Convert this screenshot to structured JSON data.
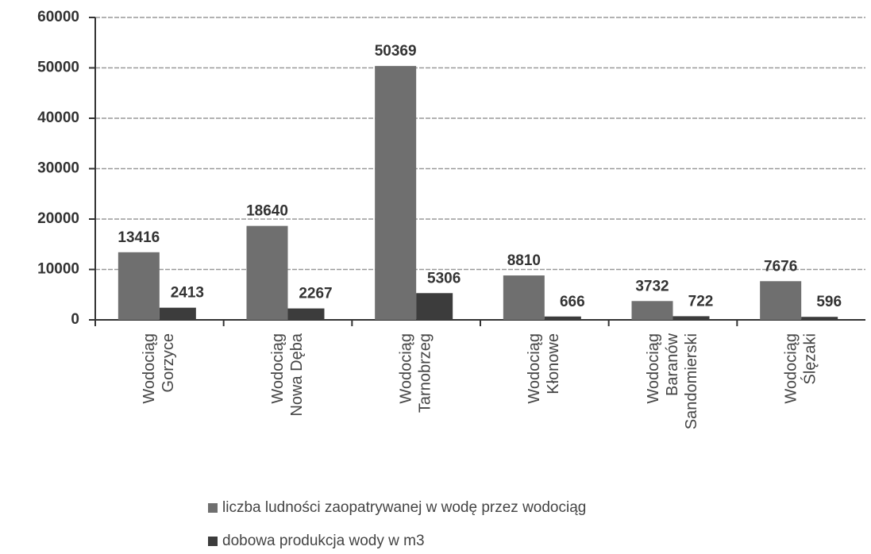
{
  "chart_data": {
    "type": "bar",
    "categories": [
      [
        "Wodociąg",
        "Gorzyce"
      ],
      [
        "Wodociąg",
        "Nowa Dęba"
      ],
      [
        "Wodociąg",
        "Tarnobrzeg"
      ],
      [
        "Wodociąg",
        "Kłonowe"
      ],
      [
        "Wodociąg",
        "Baranów",
        "Sandomierski"
      ],
      [
        "Wodociąg",
        "Ślęzaki"
      ]
    ],
    "series": [
      {
        "name": "liczba ludności zaopatrywanej w wodę przez wodociąg",
        "color": "#6f6f6f",
        "values": [
          13416,
          18640,
          50369,
          8810,
          3732,
          7676
        ]
      },
      {
        "name": "dobowa produkcja wody w m3",
        "color": "#3c3c3c",
        "values": [
          2413,
          2267,
          5306,
          666,
          722,
          596
        ]
      }
    ],
    "ylim": [
      0,
      60000
    ],
    "yticks": [
      0,
      10000,
      20000,
      30000,
      40000,
      50000,
      60000
    ],
    "grid": true,
    "legend": "bottom"
  }
}
